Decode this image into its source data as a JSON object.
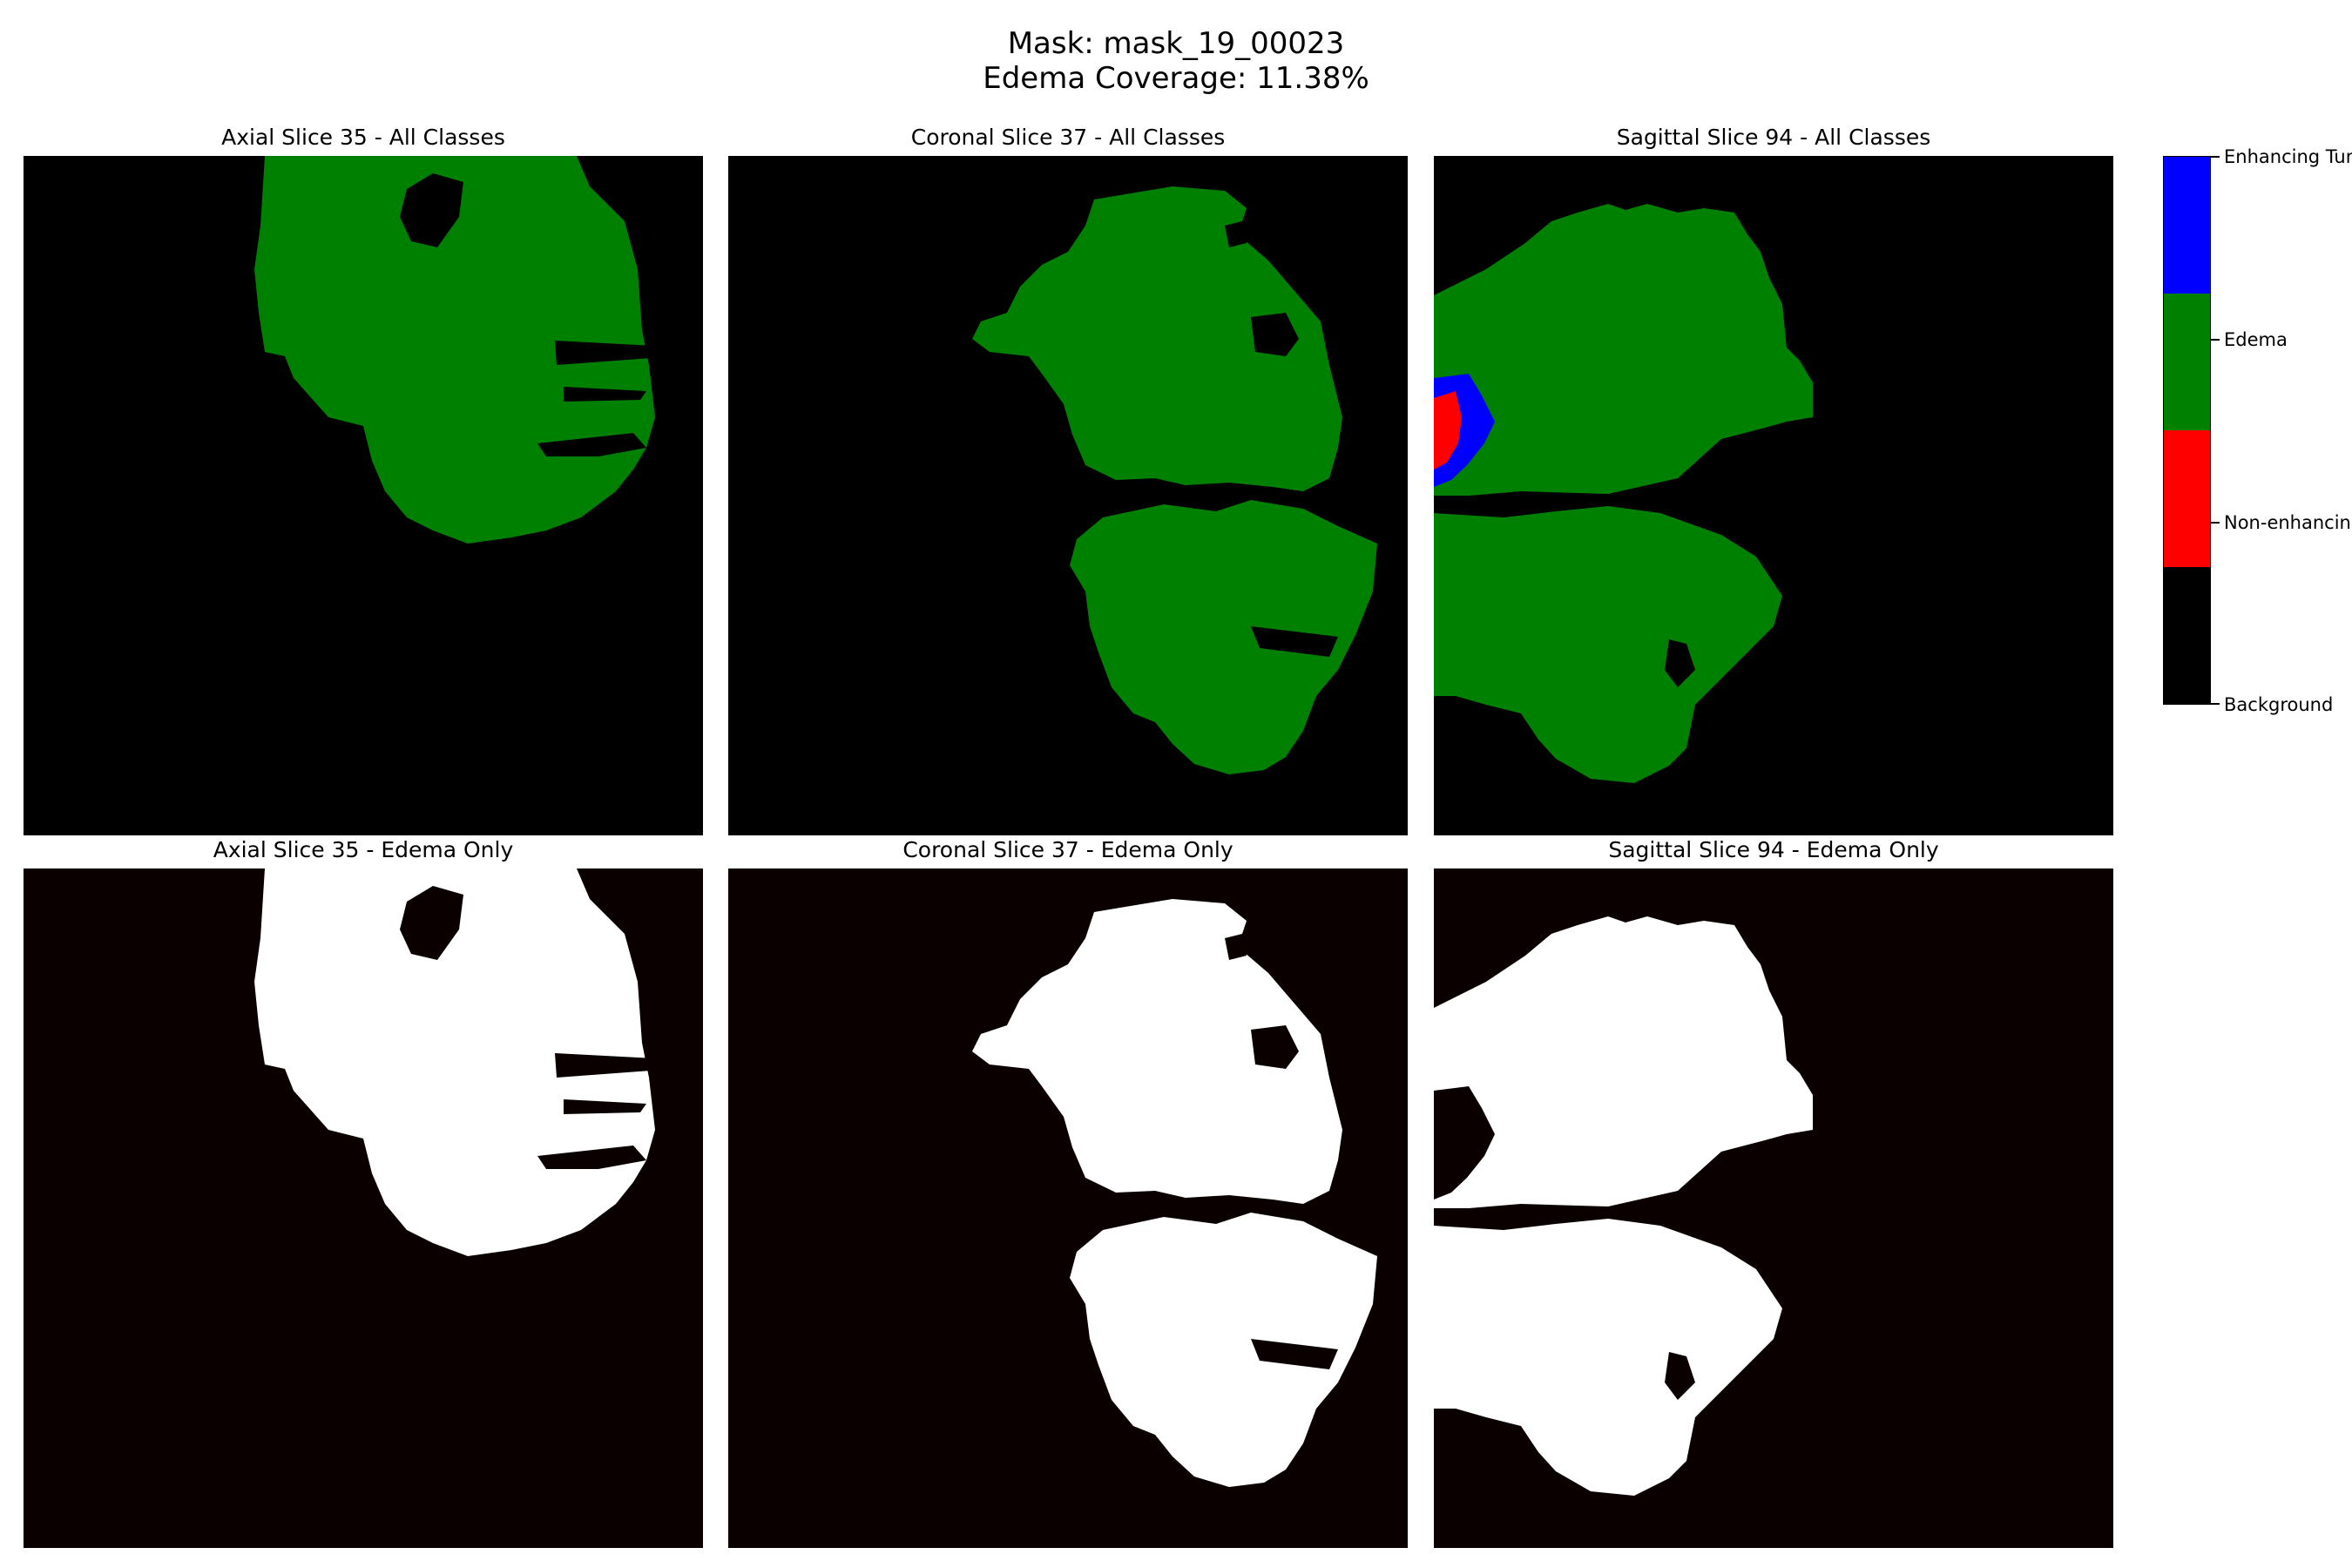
{
  "figure": {
    "title_line1": "Mask: mask_19_00023",
    "title_line2": "Edema Coverage: 11.38%"
  },
  "panels": {
    "axial_all": "Axial Slice 35 - All Classes",
    "coronal_all": "Coronal Slice 37 - All Classes",
    "sagittal_all": "Sagittal Slice 94 - All Classes",
    "axial_edema": "Axial Slice 35 - Edema Only",
    "coronal_edema": "Coronal Slice 37 - Edema Only",
    "sagittal_edema": "Sagittal Slice 94 - Edema Only"
  },
  "colorbar": {
    "labels": [
      "Enhancing Tum",
      "Edema",
      "Non-enhancinc",
      "Background"
    ],
    "colors": {
      "enhancing": "#0000ff",
      "edema": "#008000",
      "non_enhancing": "#ff0000",
      "background": "#000000"
    }
  },
  "edema_only_colors": {
    "foreground": "#ffffff",
    "background": "#0b0000"
  }
}
